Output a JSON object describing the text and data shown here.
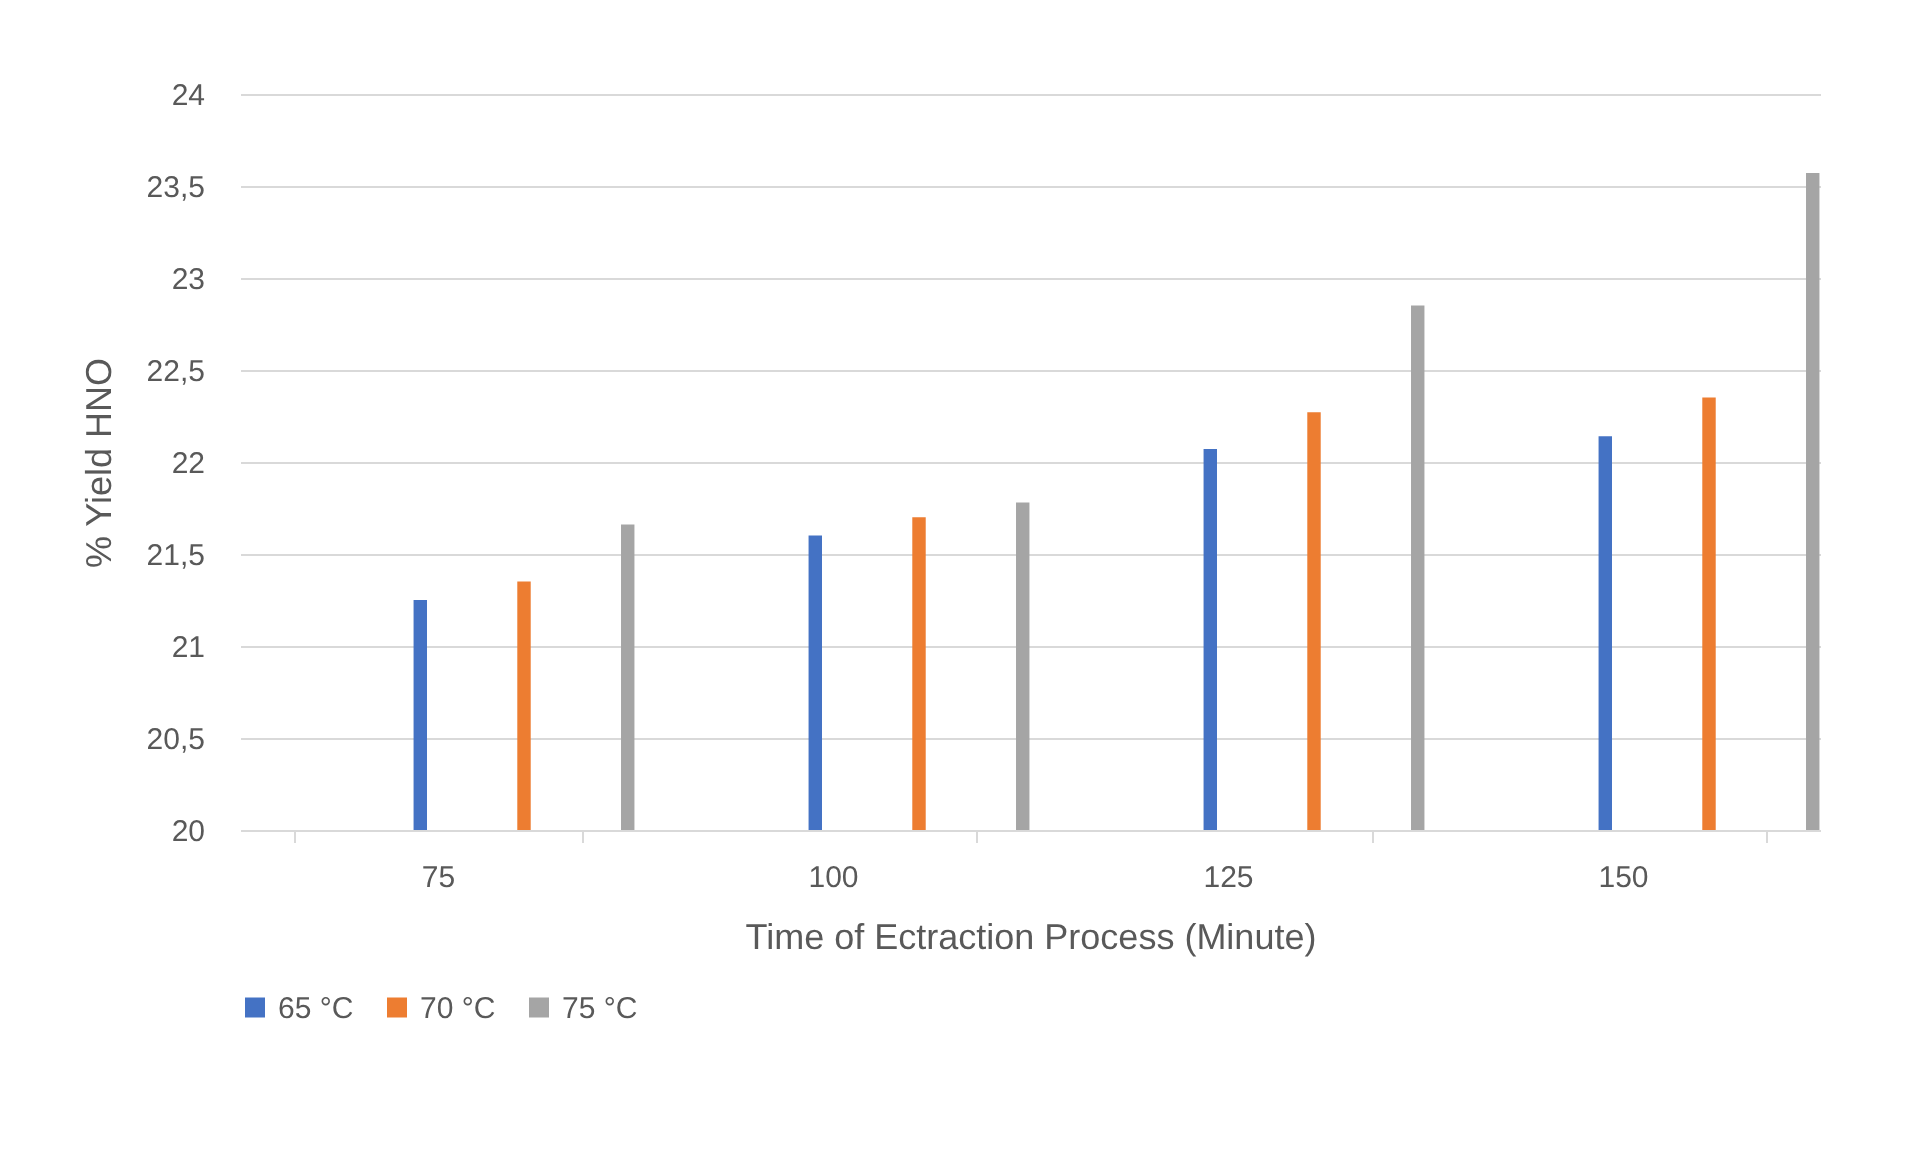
{
  "chart_data": {
    "type": "bar",
    "xlabel": "Time of Ectraction Process (Minute)",
    "ylabel": "% Yield  HNO",
    "categories": [
      "75",
      "100",
      "125",
      "150"
    ],
    "series": [
      {
        "name": "65 °C",
        "color": "#4472c4",
        "values": [
          21.25,
          21.6,
          22.07,
          22.14
        ]
      },
      {
        "name": "70 °C",
        "color": "#ed7d31",
        "values": [
          21.35,
          21.7,
          22.27,
          22.35
        ]
      },
      {
        "name": "75 °C",
        "color": "#a5a5a5",
        "values": [
          21.66,
          21.78,
          22.85,
          23.57
        ]
      }
    ],
    "ylim": [
      20,
      24
    ],
    "yticks": [
      20,
      {
        "value": 20.5,
        "label": "20,5"
      },
      21,
      {
        "value": 21.5,
        "label": "21,5"
      },
      22,
      {
        "value": 22.5,
        "label": "22,5"
      },
      23,
      {
        "value": 23.5,
        "label": "23,5"
      },
      24
    ],
    "grid": "y",
    "legend": "bottom"
  }
}
